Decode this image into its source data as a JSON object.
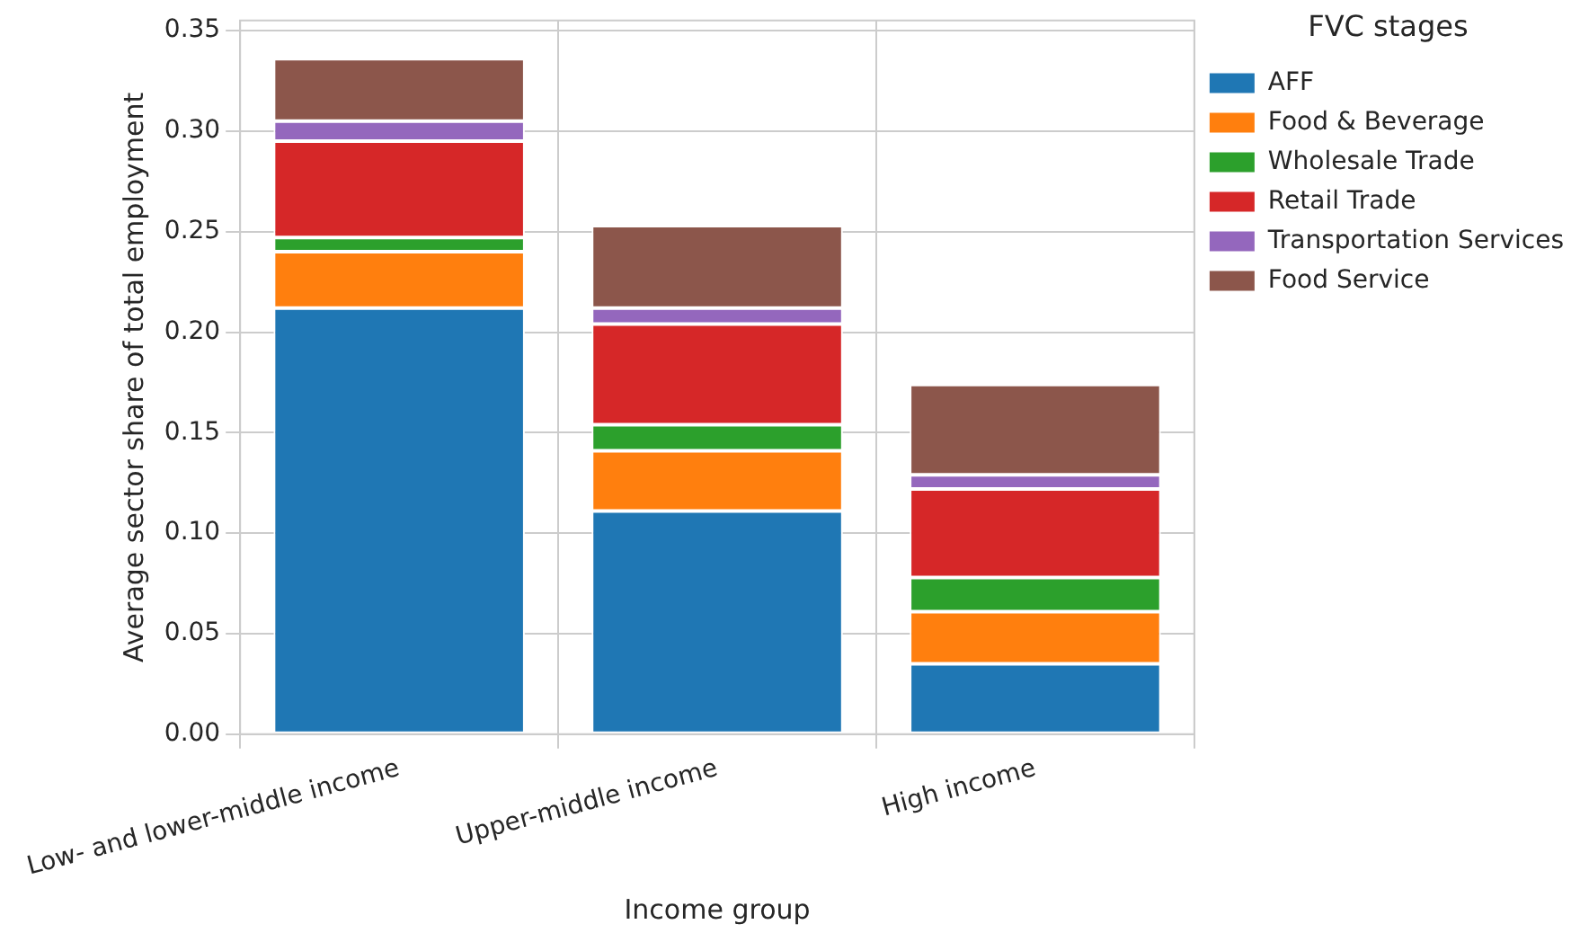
{
  "chart_data": {
    "type": "bar",
    "stacked": true,
    "xlabel": "Income group",
    "ylabel": "Average sector share of total employment",
    "legend_title": "FVC stages",
    "legend": "top right",
    "grid": true,
    "categories": [
      "Low- and lower-middle income",
      "Upper-middle income",
      "High income"
    ],
    "ylim": [
      0,
      0.355
    ],
    "yticks": [
      {
        "value": 0,
        "label": "0.00"
      },
      {
        "value": 0.05,
        "label": "0.05"
      },
      {
        "value": 0.1,
        "label": "0.10"
      },
      {
        "value": 0.15,
        "label": "0.15"
      },
      {
        "value": 0.2,
        "label": "0.20"
      },
      {
        "value": 0.25,
        "label": "0.25"
      },
      {
        "value": 0.3,
        "label": "0.30"
      },
      {
        "value": 0.35,
        "label": "0.35"
      }
    ],
    "series": [
      {
        "name": "AFF",
        "color": "#1f77b4",
        "values": [
          0.212,
          0.111,
          0.035
        ]
      },
      {
        "name": "Food & Beverage",
        "color": "#ff7f0e",
        "values": [
          0.028,
          0.03,
          0.026
        ]
      },
      {
        "name": "Wholesale Trade",
        "color": "#2ca02c",
        "values": [
          0.007,
          0.013,
          0.017
        ]
      },
      {
        "name": "Retail Trade",
        "color": "#d62728",
        "values": [
          0.048,
          0.05,
          0.044
        ]
      },
      {
        "name": "Transportation Services",
        "color": "#9467bd",
        "values": [
          0.01,
          0.008,
          0.007
        ]
      },
      {
        "name": "Food Service",
        "color": "#8c564b",
        "values": [
          0.031,
          0.041,
          0.045
        ]
      }
    ]
  }
}
